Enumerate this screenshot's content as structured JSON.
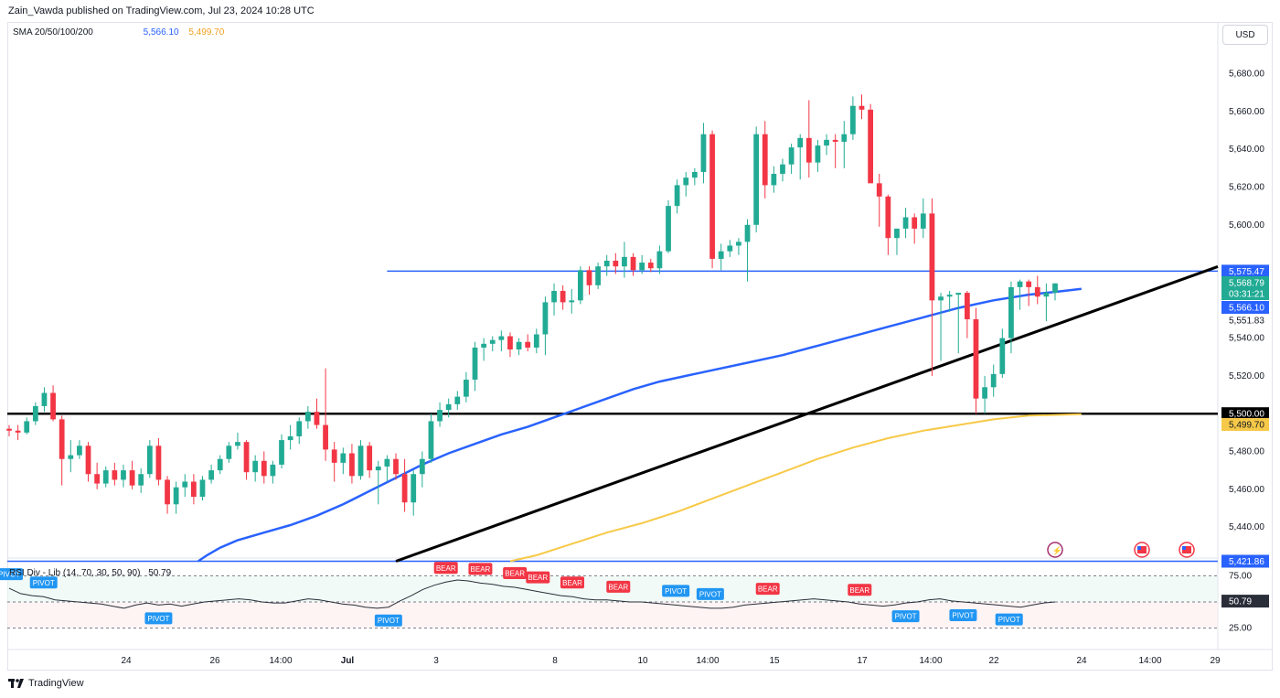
{
  "header": {
    "publisher": "Zain_Vawda published on TradingView.com, Jul 23, 2024 10:28 UTC"
  },
  "currency_button": "USD",
  "sma_legend": {
    "label": "SMA 20/50/100/200",
    "value1": "5,566.10",
    "value2": "5,499.70"
  },
  "rsi_legend": {
    "label": "RSI Div - Lib (14, 70, 30, 50, 90)",
    "value": "50.79"
  },
  "footer": {
    "brand": "TradingView"
  },
  "colors": {
    "up": "#22ab94",
    "down": "#f23645",
    "sma100": "#2962ff",
    "sma200": "#f7c948",
    "trend": "#000000",
    "level": "#2962ff",
    "rsi": "#2a2e39",
    "bear": "#f23645",
    "pivot": "#2196f3"
  },
  "chart_data": {
    "type": "candlestick",
    "timeframe": "2-hour",
    "price_axis": {
      "ticks": [
        5440,
        5460,
        5480,
        5520,
        5540,
        5600,
        5620,
        5640,
        5660,
        5680
      ],
      "ylim": [
        5425,
        5690
      ]
    },
    "time_axis": {
      "ticks": [
        "24",
        "26",
        "14:00",
        "Jul",
        "3",
        "8",
        "10",
        "14:00",
        "15",
        "17",
        "14:00",
        "22",
        "24",
        "14:00",
        "29"
      ]
    },
    "price_labels": [
      {
        "value": "5,575.47",
        "kind": "level"
      },
      {
        "value": "5,568.79",
        "kind": "last"
      },
      {
        "value": "03:31:21",
        "kind": "countdown"
      },
      {
        "value": "5,566.10",
        "kind": "sma100"
      },
      {
        "value": "5,551.83",
        "kind": "plain"
      },
      {
        "value": "5,500.00",
        "kind": "level-black"
      },
      {
        "value": "5,499.70",
        "kind": "sma200"
      },
      {
        "value": "5,421.86",
        "kind": "level"
      }
    ],
    "horizontal_levels": [
      5575.47,
      5500.0,
      5421.86
    ],
    "candles_ohlc": [
      [
        5492,
        5494,
        5488,
        5491
      ],
      [
        5491,
        5494,
        5486,
        5490
      ],
      [
        5490,
        5498,
        5489,
        5496
      ],
      [
        5496,
        5506,
        5494,
        5504
      ],
      [
        5504,
        5514,
        5501,
        5511
      ],
      [
        5511,
        5515,
        5496,
        5497
      ],
      [
        5497,
        5499,
        5462,
        5476
      ],
      [
        5476,
        5486,
        5469,
        5478
      ],
      [
        5478,
        5486,
        5476,
        5483
      ],
      [
        5483,
        5485,
        5464,
        5468
      ],
      [
        5468,
        5474,
        5460,
        5463
      ],
      [
        5463,
        5472,
        5461,
        5470
      ],
      [
        5470,
        5474,
        5462,
        5465
      ],
      [
        5465,
        5473,
        5461,
        5470
      ],
      [
        5470,
        5475,
        5460,
        5462
      ],
      [
        5462,
        5471,
        5458,
        5468
      ],
      [
        5468,
        5486,
        5466,
        5483
      ],
      [
        5483,
        5487,
        5462,
        5465
      ],
      [
        5465,
        5467,
        5447,
        5452
      ],
      [
        5452,
        5464,
        5447,
        5461
      ],
      [
        5461,
        5468,
        5456,
        5464
      ],
      [
        5464,
        5468,
        5452,
        5456
      ],
      [
        5456,
        5467,
        5454,
        5465
      ],
      [
        5465,
        5473,
        5463,
        5470
      ],
      [
        5470,
        5478,
        5468,
        5476
      ],
      [
        5476,
        5485,
        5474,
        5483
      ],
      [
        5483,
        5490,
        5481,
        5485
      ],
      [
        5485,
        5486,
        5465,
        5469
      ],
      [
        5469,
        5478,
        5464,
        5475
      ],
      [
        5475,
        5480,
        5463,
        5467
      ],
      [
        5467,
        5475,
        5463,
        5473
      ],
      [
        5473,
        5489,
        5471,
        5486
      ],
      [
        5486,
        5494,
        5481,
        5488
      ],
      [
        5488,
        5498,
        5484,
        5496
      ],
      [
        5496,
        5504,
        5492,
        5501
      ],
      [
        5501,
        5508,
        5492,
        5494
      ],
      [
        5494,
        5524,
        5475,
        5481
      ],
      [
        5481,
        5485,
        5464,
        5474
      ],
      [
        5474,
        5482,
        5468,
        5479
      ],
      [
        5479,
        5484,
        5463,
        5467
      ],
      [
        5467,
        5486,
        5465,
        5483
      ],
      [
        5483,
        5485,
        5466,
        5470
      ],
      [
        5470,
        5475,
        5452,
        5472
      ],
      [
        5472,
        5478,
        5464,
        5476
      ],
      [
        5476,
        5479,
        5465,
        5468
      ],
      [
        5468,
        5476,
        5448,
        5453
      ],
      [
        5453,
        5470,
        5446,
        5468
      ],
      [
        5468,
        5480,
        5461,
        5476
      ],
      [
        5476,
        5500,
        5474,
        5496
      ],
      [
        5496,
        5506,
        5493,
        5502
      ],
      [
        5502,
        5508,
        5498,
        5505
      ],
      [
        5505,
        5512,
        5502,
        5509
      ],
      [
        5509,
        5522,
        5506,
        5518
      ],
      [
        5518,
        5538,
        5512,
        5535
      ],
      [
        5535,
        5540,
        5528,
        5537
      ],
      [
        5537,
        5541,
        5533,
        5539
      ],
      [
        5539,
        5544,
        5533,
        5541
      ],
      [
        5541,
        5543,
        5530,
        5534
      ],
      [
        5534,
        5540,
        5531,
        5538
      ],
      [
        5538,
        5542,
        5533,
        5535
      ],
      [
        5535,
        5545,
        5532,
        5542
      ],
      [
        5542,
        5562,
        5531,
        5559
      ],
      [
        5559,
        5569,
        5552,
        5565
      ],
      [
        5565,
        5568,
        5555,
        5559
      ],
      [
        5559,
        5566,
        5553,
        5560
      ],
      [
        5560,
        5578,
        5558,
        5576
      ],
      [
        5576,
        5578,
        5563,
        5568
      ],
      [
        5568,
        5580,
        5566,
        5578
      ],
      [
        5578,
        5584,
        5573,
        5581
      ],
      [
        5581,
        5585,
        5574,
        5578
      ],
      [
        5578,
        5591,
        5572,
        5583
      ],
      [
        5583,
        5585,
        5573,
        5576
      ],
      [
        5576,
        5584,
        5574,
        5580
      ],
      [
        5580,
        5582,
        5575,
        5577
      ],
      [
        5577,
        5589,
        5574,
        5586
      ],
      [
        5586,
        5613,
        5585,
        5610
      ],
      [
        5610,
        5624,
        5606,
        5621
      ],
      [
        5621,
        5628,
        5615,
        5625
      ],
      [
        5625,
        5630,
        5621,
        5628
      ],
      [
        5628,
        5654,
        5622,
        5648
      ],
      [
        5648,
        5650,
        5577,
        5582
      ],
      [
        5582,
        5590,
        5576,
        5586
      ],
      [
        5586,
        5592,
        5583,
        5589
      ],
      [
        5589,
        5593,
        5584,
        5591
      ],
      [
        5591,
        5603,
        5570,
        5600
      ],
      [
        5600,
        5652,
        5596,
        5648
      ],
      [
        5648,
        5655,
        5614,
        5621
      ],
      [
        5621,
        5631,
        5617,
        5627
      ],
      [
        5627,
        5635,
        5623,
        5632
      ],
      [
        5632,
        5643,
        5627,
        5641
      ],
      [
        5641,
        5648,
        5624,
        5646
      ],
      [
        5646,
        5666,
        5625,
        5633
      ],
      [
        5633,
        5645,
        5628,
        5642
      ],
      [
        5642,
        5648,
        5637,
        5645
      ],
      [
        5645,
        5648,
        5630,
        5644
      ],
      [
        5644,
        5655,
        5630,
        5648
      ],
      [
        5648,
        5668,
        5645,
        5663
      ],
      [
        5663,
        5669,
        5656,
        5661
      ],
      [
        5661,
        5664,
        5640,
        5622
      ],
      [
        5622,
        5627,
        5599,
        5615
      ],
      [
        5615,
        5616,
        5584,
        5593
      ],
      [
        5593,
        5598,
        5584,
        5598
      ],
      [
        5598,
        5609,
        5593,
        5604
      ],
      [
        5604,
        5606,
        5590,
        5598
      ],
      [
        5598,
        5614,
        5593,
        5606
      ],
      [
        5606,
        5614,
        5520,
        5560
      ],
      [
        5560,
        5564,
        5528,
        5562
      ],
      [
        5562,
        5565,
        5554,
        5563
      ],
      [
        5563,
        5564,
        5532,
        5564
      ],
      [
        5564,
        5565,
        5540,
        5550
      ],
      [
        5550,
        5556,
        5500,
        5508
      ],
      [
        5508,
        5520,
        5500,
        5514
      ],
      [
        5514,
        5526,
        5509,
        5521
      ],
      [
        5521,
        5545,
        5519,
        5540
      ],
      [
        5540,
        5570,
        5532,
        5567
      ],
      [
        5567,
        5571,
        5555,
        5570
      ],
      [
        5570,
        5571,
        5557,
        5567
      ],
      [
        5567,
        5573,
        5558,
        5562
      ],
      [
        5562,
        5569,
        5549,
        5564
      ],
      [
        5564,
        5569,
        5560,
        5569
      ]
    ],
    "sma100": [
      [
        21.5,
        5421.86
      ],
      [
        22.5,
        5425
      ],
      [
        24,
        5429
      ],
      [
        26,
        5433
      ],
      [
        29,
        5437
      ],
      [
        32,
        5441
      ],
      [
        35,
        5446
      ],
      [
        38,
        5452
      ],
      [
        41,
        5459
      ],
      [
        44,
        5466
      ],
      [
        47,
        5473
      ],
      [
        50,
        5479
      ],
      [
        53,
        5484
      ],
      [
        56,
        5489
      ],
      [
        59,
        5493
      ],
      [
        62,
        5498
      ],
      [
        65,
        5503
      ],
      [
        68,
        5508
      ],
      [
        71,
        5513
      ],
      [
        74,
        5517
      ],
      [
        77,
        5520
      ],
      [
        80,
        5523
      ],
      [
        84,
        5527
      ],
      [
        88,
        5531
      ],
      [
        92,
        5536
      ],
      [
        96,
        5541
      ],
      [
        100,
        5546
      ],
      [
        104,
        5551
      ],
      [
        108,
        5556
      ],
      [
        112,
        5560
      ],
      [
        116,
        5563
      ],
      [
        120,
        5565
      ],
      [
        122,
        5566.1
      ]
    ],
    "sma200": [
      [
        57,
        5421.86
      ],
      [
        60,
        5425
      ],
      [
        64,
        5431
      ],
      [
        68,
        5437
      ],
      [
        72,
        5442
      ],
      [
        76,
        5448
      ],
      [
        80,
        5455
      ],
      [
        84,
        5462
      ],
      [
        88,
        5469
      ],
      [
        92,
        5476
      ],
      [
        96,
        5482
      ],
      [
        100,
        5487
      ],
      [
        104,
        5491
      ],
      [
        108,
        5494
      ],
      [
        112,
        5497
      ],
      [
        116,
        5499
      ],
      [
        122,
        5499.7
      ]
    ],
    "trendline": [
      [
        44,
        5421.86
      ],
      [
        122,
        5552
      ]
    ],
    "rsi": {
      "levels": [
        75,
        50,
        25
      ],
      "ticks": [
        "75.00",
        "25.00"
      ],
      "current": "50.79",
      "signals": [
        {
          "text": "PIVOT",
          "idx": 0,
          "side": "top"
        },
        {
          "text": "PIVOT",
          "idx": 3,
          "side": "top"
        },
        {
          "text": "PIVOT",
          "idx": 13,
          "side": "bottom"
        },
        {
          "text": "PIVOT",
          "idx": 33,
          "side": "bottom"
        },
        {
          "text": "BEAR",
          "idx": 38,
          "side": "top"
        },
        {
          "text": "BEAR",
          "idx": 41,
          "side": "top"
        },
        {
          "text": "BEAR",
          "idx": 44,
          "side": "top"
        },
        {
          "text": "BEAR",
          "idx": 46,
          "side": "top"
        },
        {
          "text": "BEAR",
          "idx": 49,
          "side": "top"
        },
        {
          "text": "BEAR",
          "idx": 53,
          "side": "top"
        },
        {
          "text": "PIVOT",
          "idx": 58,
          "side": "top"
        },
        {
          "text": "PIVOT",
          "idx": 61,
          "side": "top"
        },
        {
          "text": "BEAR",
          "idx": 66,
          "side": "top"
        },
        {
          "text": "BEAR",
          "idx": 74,
          "side": "top"
        },
        {
          "text": "PIVOT",
          "idx": 78,
          "side": "bottom"
        },
        {
          "text": "PIVOT",
          "idx": 83,
          "side": "bottom"
        },
        {
          "text": "PIVOT",
          "idx": 87,
          "side": "bottom"
        }
      ],
      "values": [
        63,
        58,
        56,
        55,
        52,
        51,
        50,
        49,
        48,
        46,
        44,
        47,
        49,
        47,
        48,
        46,
        48,
        50,
        51,
        52,
        53,
        52,
        50,
        49,
        49,
        51,
        53,
        52,
        50,
        48,
        47,
        45,
        44,
        45,
        51,
        56,
        62,
        66,
        69,
        71,
        70,
        68,
        67,
        65,
        64,
        62,
        60,
        58,
        56,
        55,
        53,
        52,
        52,
        51,
        50,
        50,
        49,
        48,
        47,
        46,
        45,
        44,
        44,
        45,
        47,
        48,
        49,
        50,
        51,
        52,
        53,
        52,
        51,
        50,
        48,
        47,
        46,
        47,
        49,
        50,
        52,
        53,
        51,
        50,
        49,
        48,
        47,
        46,
        45,
        47,
        49,
        50
      ]
    }
  }
}
